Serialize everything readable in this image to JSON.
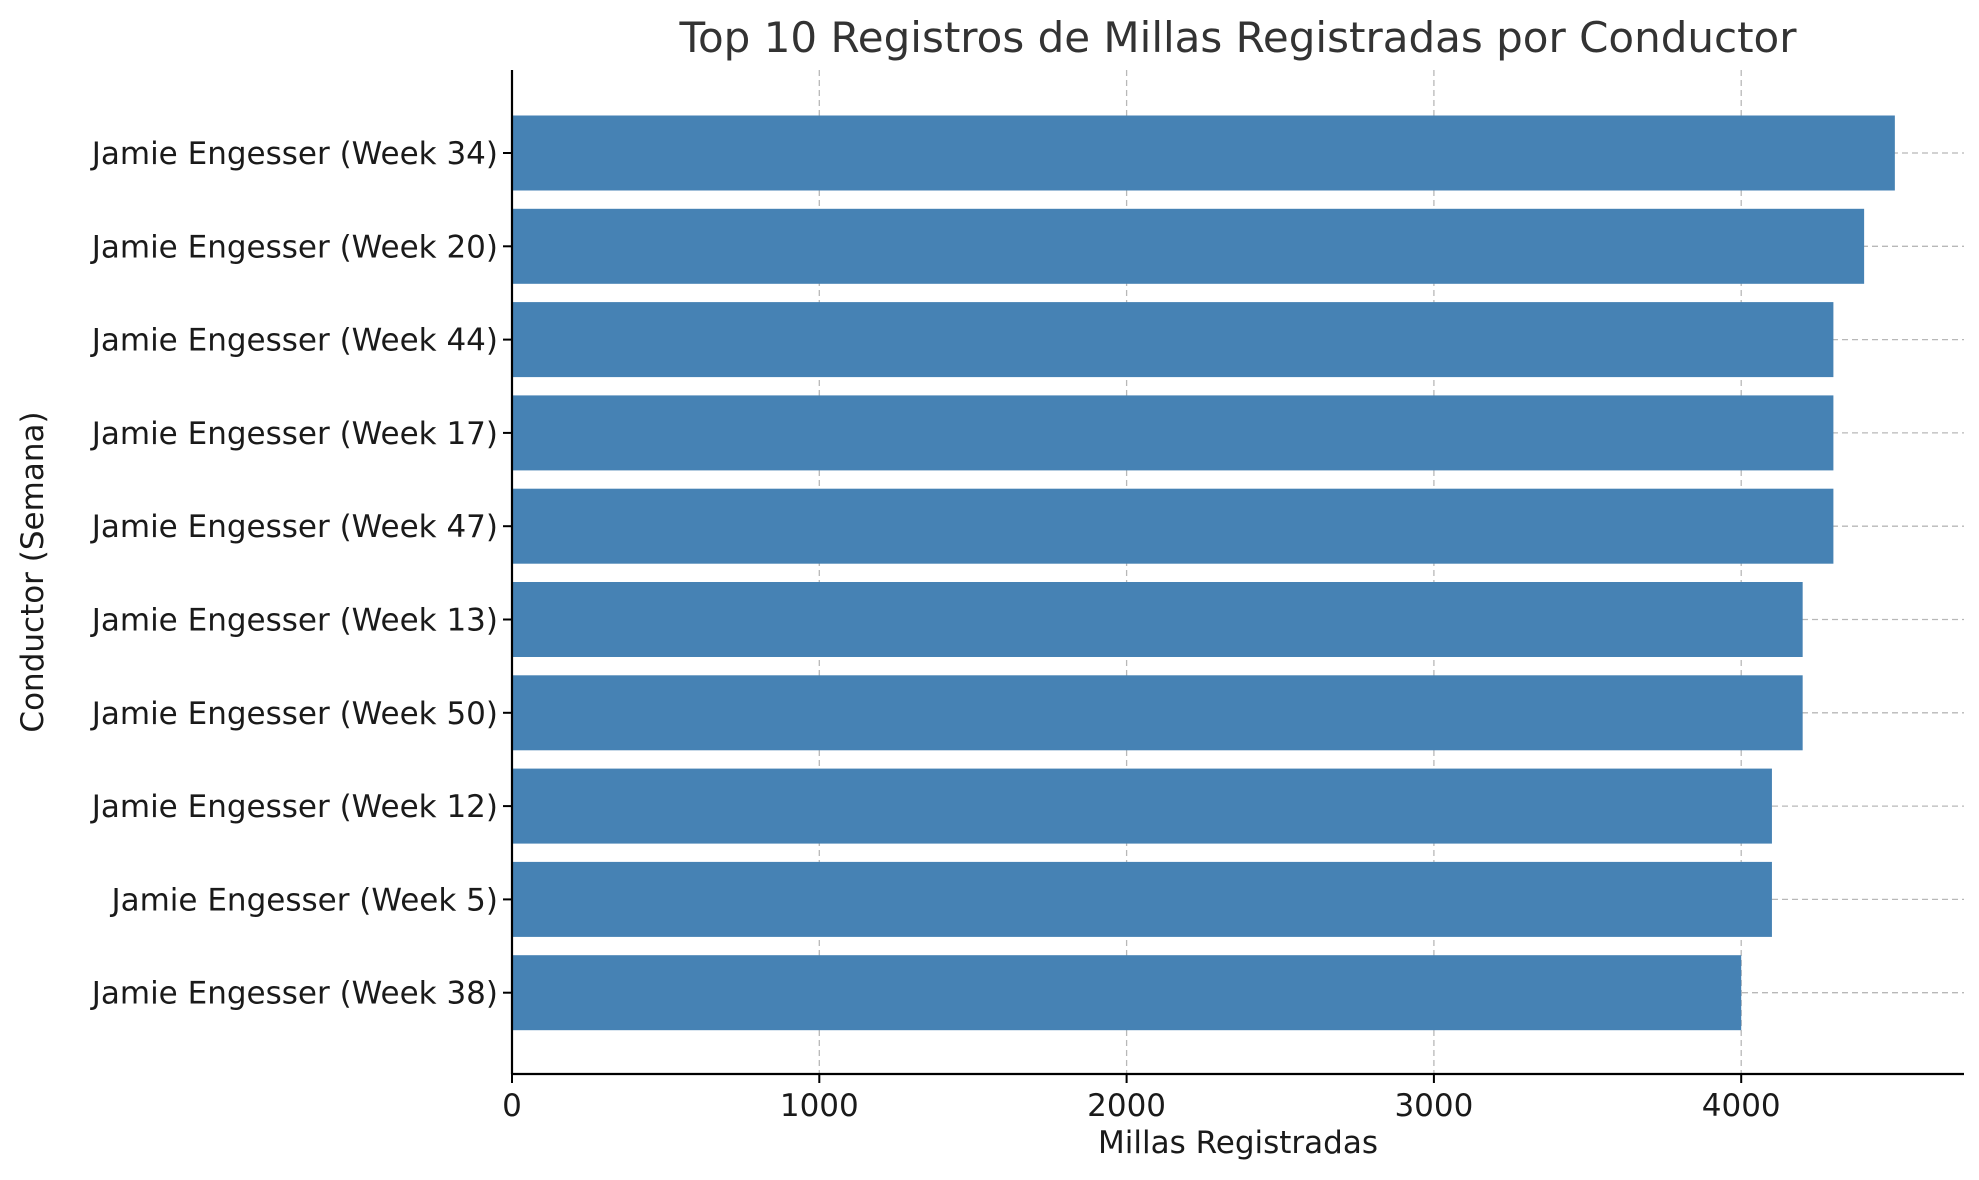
{
  "chart_data": {
    "type": "bar",
    "orientation": "horizontal",
    "title": "Top 10 Registros de Millas Registradas por Conductor",
    "xlabel": "Millas Registradas",
    "ylabel": "Conductor (Semana)",
    "categories": [
      "Jamie Engesser (Week 34)",
      "Jamie Engesser (Week 20)",
      "Jamie Engesser (Week 44)",
      "Jamie Engesser (Week 17)",
      "Jamie Engesser (Week 47)",
      "Jamie Engesser (Week 13)",
      "Jamie Engesser (Week 50)",
      "Jamie Engesser (Week 12)",
      "Jamie Engesser (Week 5)",
      "Jamie Engesser (Week 38)"
    ],
    "values": [
      4500,
      4400,
      4300,
      4300,
      4300,
      4200,
      4200,
      4100,
      4100,
      4000
    ],
    "xlim": [
      0,
      4725
    ],
    "xticks": [
      0,
      1000,
      2000,
      3000,
      4000
    ],
    "grid": true,
    "bar_color": "#4682b4"
  }
}
